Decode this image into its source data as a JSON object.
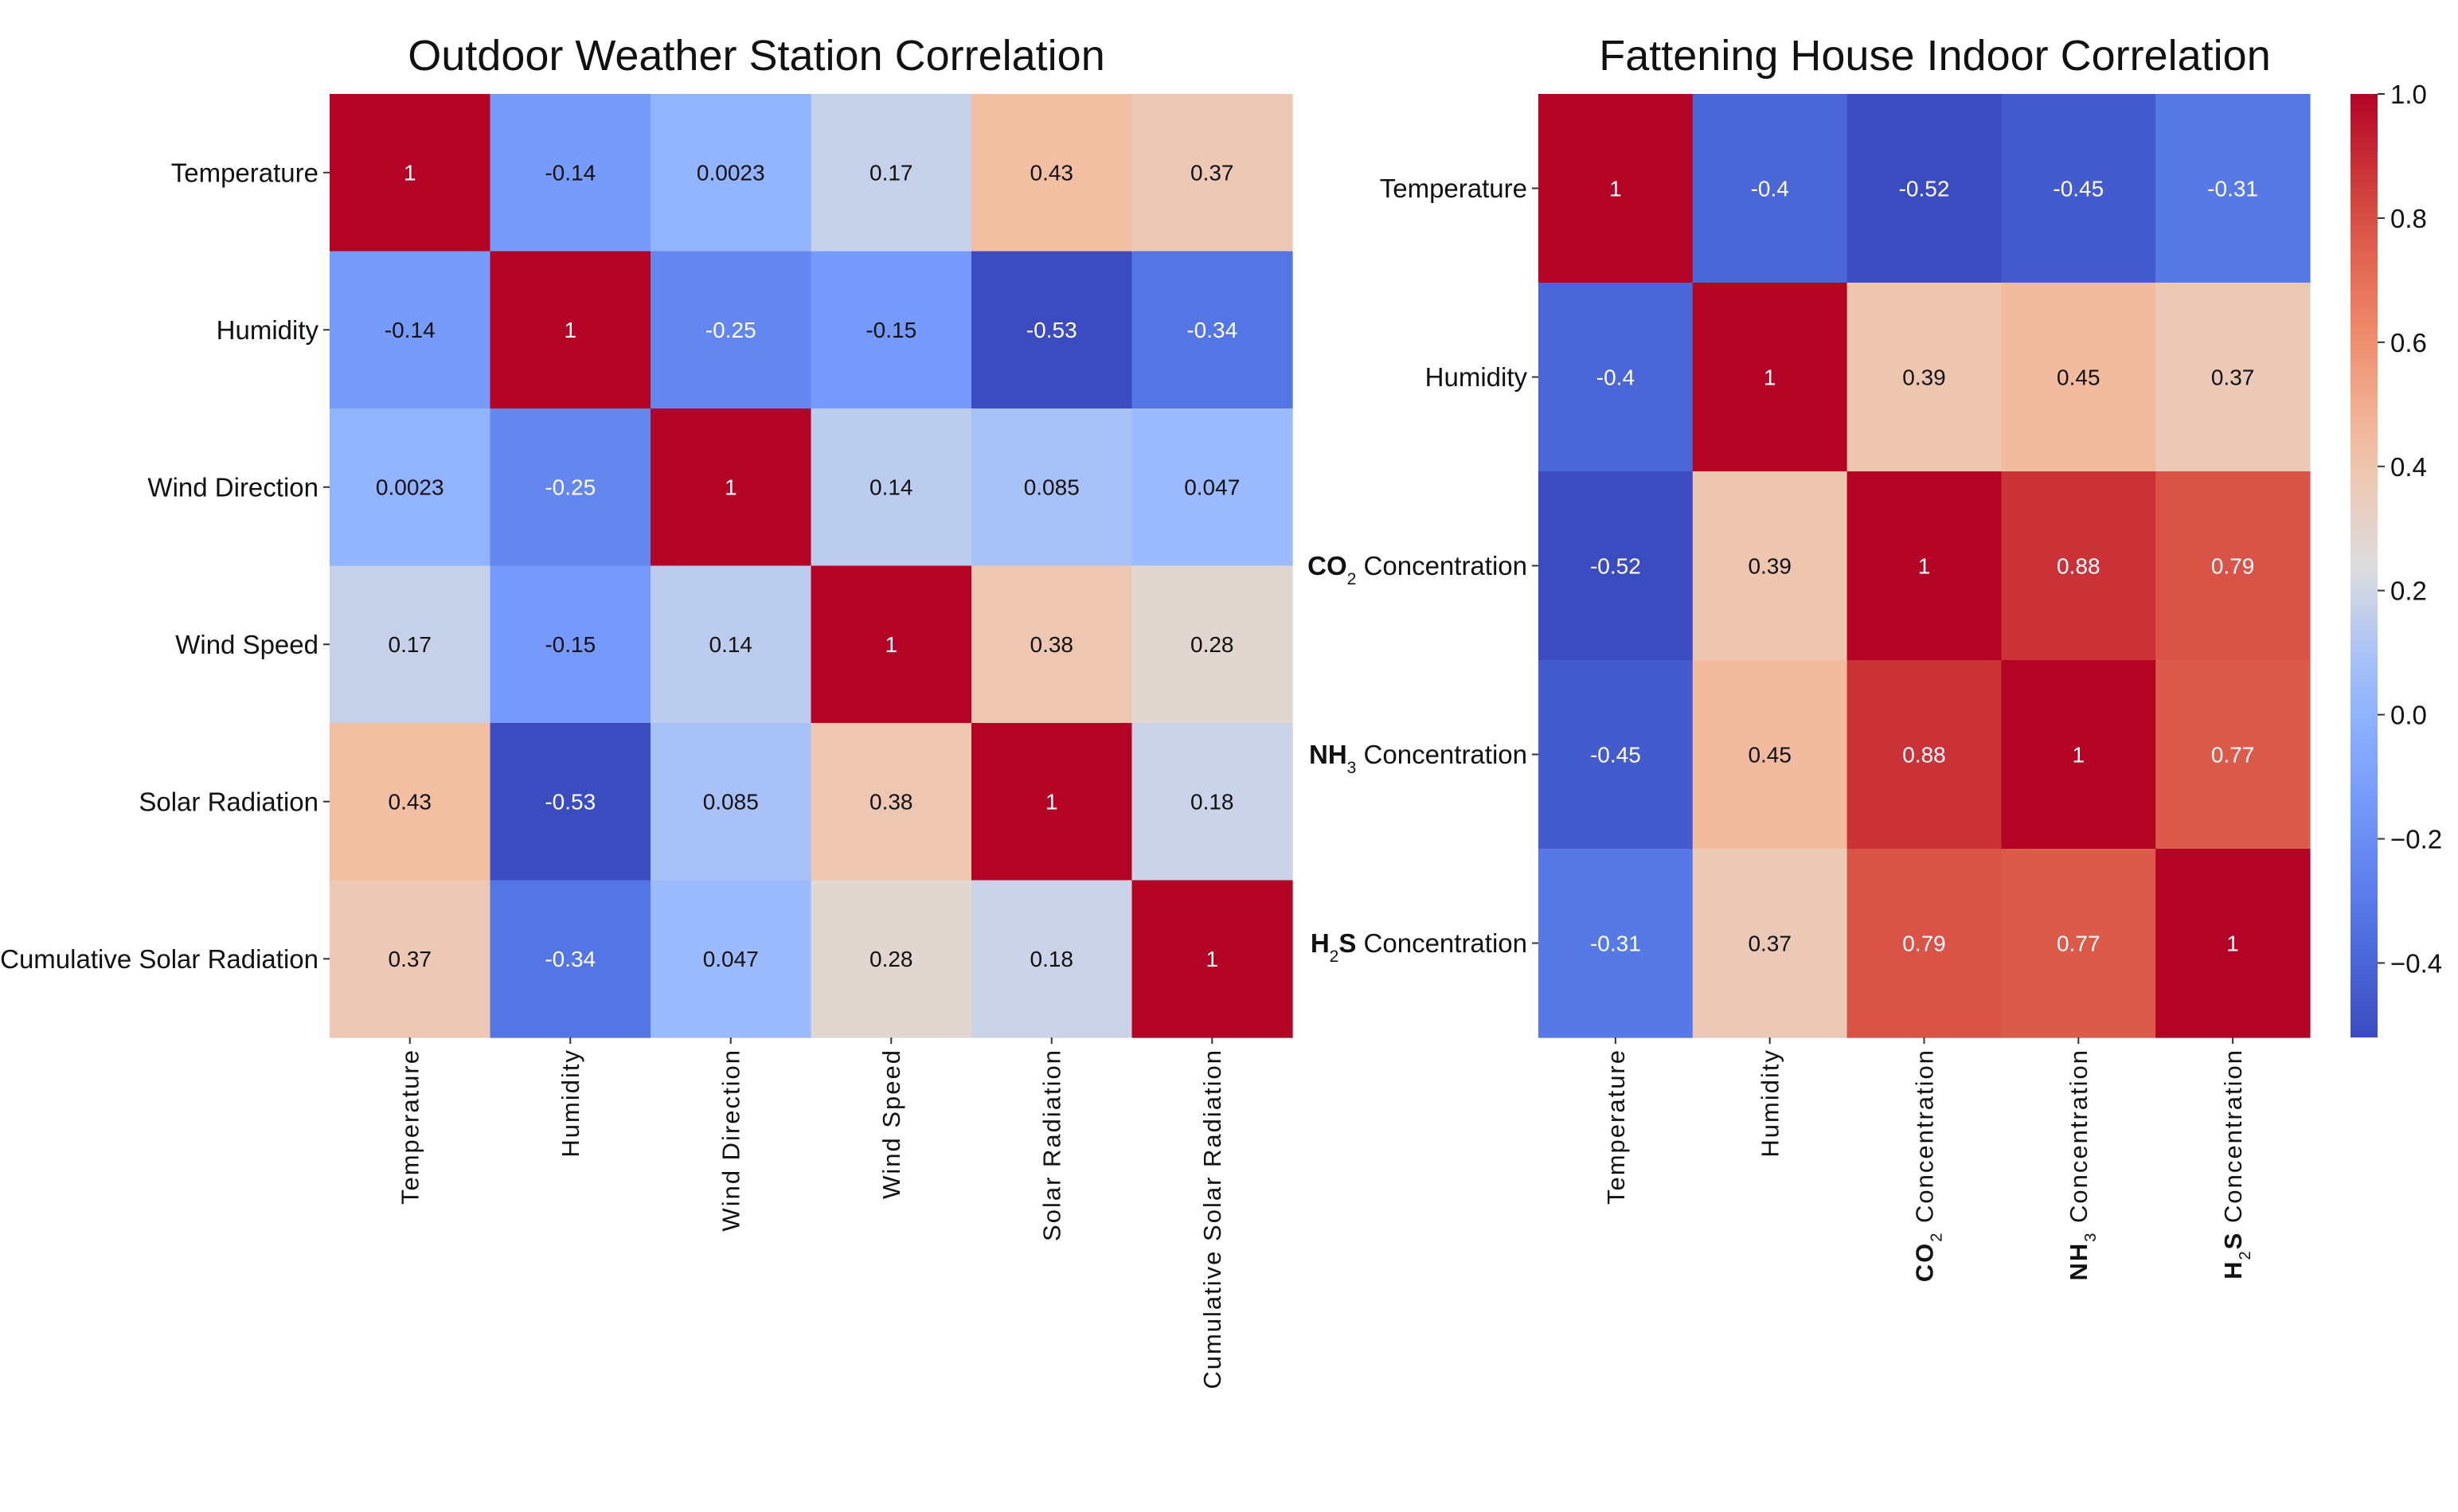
{
  "chart_data": [
    {
      "type": "heatmap",
      "title": "Outdoor Weather Station Correlation",
      "row_labels": [
        "Temperature",
        "Humidity",
        "Wind Direction",
        "Wind Speed",
        "Solar Radiation",
        "Cumulative Solar Radiation"
      ],
      "col_labels": [
        "Temperature",
        "Humidity",
        "Wind Direction",
        "Wind Speed",
        "Solar Radiation",
        "Cumulative Solar Radiation"
      ],
      "values": [
        [
          1,
          -0.14,
          0.0023,
          0.17,
          0.43,
          0.37
        ],
        [
          -0.14,
          1,
          -0.25,
          -0.15,
          -0.53,
          -0.34
        ],
        [
          0.0023,
          -0.25,
          1,
          0.14,
          0.085,
          0.047
        ],
        [
          0.17,
          -0.15,
          0.14,
          1,
          0.38,
          0.28
        ],
        [
          0.43,
          -0.53,
          0.085,
          0.38,
          1,
          0.18
        ],
        [
          0.37,
          -0.34,
          0.047,
          0.28,
          0.18,
          1
        ]
      ],
      "value_labels": [
        [
          "1",
          "-0.14",
          "0.0023",
          "0.17",
          "0.43",
          "0.37"
        ],
        [
          "-0.14",
          "1",
          "-0.25",
          "-0.15",
          "-0.53",
          "-0.34"
        ],
        [
          "0.0023",
          "-0.25",
          "1",
          "0.14",
          "0.085",
          "0.047"
        ],
        [
          "0.17",
          "-0.15",
          "0.14",
          "1",
          "0.38",
          "0.28"
        ],
        [
          "0.43",
          "-0.53",
          "0.085",
          "0.38",
          "1",
          "0.18"
        ],
        [
          "0.37",
          "-0.34",
          "0.047",
          "0.28",
          "0.18",
          "1"
        ]
      ],
      "colormap": "coolwarm",
      "vmin": -0.53,
      "vmax": 1.0
    },
    {
      "type": "heatmap",
      "title": "Fattening House Indoor Correlation",
      "row_labels": [
        "Temperature",
        "Humidity",
        "CO2 Concentration",
        "NH3 Concentration",
        "H2S Concentration"
      ],
      "col_labels": [
        "Temperature",
        "Humidity",
        "CO2 Concentration",
        "NH3 Concentration",
        "H2S Concentration"
      ],
      "values": [
        [
          1,
          -0.4,
          -0.52,
          -0.45,
          -0.31
        ],
        [
          -0.4,
          1,
          0.39,
          0.45,
          0.37
        ],
        [
          -0.52,
          0.39,
          1,
          0.88,
          0.79
        ],
        [
          -0.45,
          0.45,
          0.88,
          1,
          0.77
        ],
        [
          -0.31,
          0.37,
          0.79,
          0.77,
          1
        ]
      ],
      "value_labels": [
        [
          "1",
          "-0.4",
          "-0.52",
          "-0.45",
          "-0.31"
        ],
        [
          "-0.4",
          "1",
          "0.39",
          "0.45",
          "0.37"
        ],
        [
          "-0.52",
          "0.39",
          "1",
          "0.88",
          "0.79"
        ],
        [
          "-0.45",
          "0.45",
          "0.88",
          "1",
          "0.77"
        ],
        [
          "-0.31",
          "0.37",
          "0.79",
          "0.77",
          "1"
        ]
      ],
      "colormap": "coolwarm",
      "vmin": -0.52,
      "vmax": 1.0,
      "colorbar": {
        "ticks": [
          -0.4,
          -0.2,
          0.0,
          0.2,
          0.4,
          0.6,
          0.8,
          1.0
        ],
        "tick_labels": [
          "−0.4",
          "−0.2",
          "0.0",
          "0.2",
          "0.4",
          "0.6",
          "0.8",
          "1.0"
        ]
      }
    }
  ]
}
